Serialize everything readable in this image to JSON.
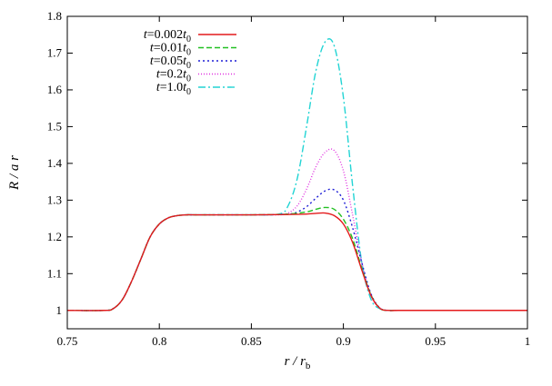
{
  "chart_data": {
    "type": "line",
    "title": "",
    "xlabel": "r / r_b",
    "ylabel": "R / a r",
    "xlim": [
      0.75,
      1.0
    ],
    "ylim": [
      0.95,
      1.8
    ],
    "xticks": [
      0.75,
      0.8,
      0.85,
      0.9,
      0.95,
      1.0
    ],
    "xtick_labels": [
      "0.75",
      "0.8",
      "0.85",
      "0.9",
      "0.95",
      "1"
    ],
    "yticks": [
      1.0,
      1.1,
      1.2,
      1.3,
      1.4,
      1.5,
      1.6,
      1.7,
      1.8
    ],
    "ytick_labels": [
      "1",
      "1.1",
      "1.2",
      "1.3",
      "1.4",
      "1.5",
      "1.6",
      "1.7",
      "1.8"
    ],
    "grid": false,
    "legend_position": "top-left",
    "series": [
      {
        "name": "t=0.002t0",
        "color": "#e41a1c",
        "dash": "solid",
        "x": [
          0.75,
          0.77,
          0.775,
          0.78,
          0.785,
          0.79,
          0.795,
          0.8,
          0.805,
          0.81,
          0.815,
          0.82,
          0.85,
          0.87,
          0.88,
          0.885,
          0.89,
          0.895,
          0.9,
          0.905,
          0.91,
          0.915,
          0.92,
          0.925,
          0.93,
          0.95,
          1.0
        ],
        "y": [
          1.0,
          1.0,
          1.005,
          1.03,
          1.08,
          1.14,
          1.2,
          1.235,
          1.252,
          1.258,
          1.26,
          1.26,
          1.26,
          1.261,
          1.262,
          1.264,
          1.265,
          1.258,
          1.235,
          1.185,
          1.11,
          1.04,
          1.005,
          1.0,
          1.0,
          1.0,
          1.0
        ]
      },
      {
        "name": "t=0.01t0",
        "color": "#22c022",
        "dash": "6,3",
        "x": [
          0.75,
          0.77,
          0.775,
          0.78,
          0.785,
          0.79,
          0.795,
          0.8,
          0.805,
          0.81,
          0.815,
          0.82,
          0.85,
          0.87,
          0.88,
          0.885,
          0.89,
          0.895,
          0.9,
          0.905,
          0.91,
          0.915,
          0.92,
          0.925,
          0.93,
          0.95,
          1.0
        ],
        "y": [
          1.0,
          1.0,
          1.005,
          1.03,
          1.08,
          1.14,
          1.2,
          1.235,
          1.252,
          1.258,
          1.26,
          1.26,
          1.26,
          1.262,
          1.268,
          1.275,
          1.28,
          1.275,
          1.248,
          1.195,
          1.115,
          1.042,
          1.005,
          1.0,
          1.0,
          1.0,
          1.0
        ]
      },
      {
        "name": "t=0.05t0",
        "color": "#1f1fd6",
        "dash": "2,3",
        "x": [
          0.75,
          0.77,
          0.775,
          0.78,
          0.785,
          0.79,
          0.795,
          0.8,
          0.805,
          0.81,
          0.815,
          0.82,
          0.85,
          0.87,
          0.875,
          0.88,
          0.885,
          0.89,
          0.895,
          0.9,
          0.905,
          0.91,
          0.915,
          0.92,
          0.925,
          0.93,
          0.95,
          1.0
        ],
        "y": [
          1.0,
          1.0,
          1.005,
          1.03,
          1.08,
          1.14,
          1.2,
          1.235,
          1.252,
          1.258,
          1.26,
          1.26,
          1.26,
          1.262,
          1.268,
          1.282,
          1.305,
          1.325,
          1.328,
          1.3,
          1.225,
          1.13,
          1.045,
          1.006,
          1.0,
          1.0,
          1.0,
          1.0
        ]
      },
      {
        "name": "t=0.2t0",
        "color": "#e030e0",
        "dash": "1,2",
        "x": [
          0.75,
          0.77,
          0.775,
          0.78,
          0.785,
          0.79,
          0.795,
          0.8,
          0.805,
          0.81,
          0.815,
          0.82,
          0.85,
          0.865,
          0.87,
          0.875,
          0.88,
          0.885,
          0.89,
          0.895,
          0.9,
          0.905,
          0.91,
          0.915,
          0.92,
          0.925,
          0.93,
          0.95,
          1.0
        ],
        "y": [
          1.0,
          1.0,
          1.005,
          1.03,
          1.08,
          1.14,
          1.2,
          1.235,
          1.252,
          1.258,
          1.26,
          1.26,
          1.26,
          1.26,
          1.265,
          1.285,
          1.33,
          1.39,
          1.43,
          1.435,
          1.38,
          1.26,
          1.13,
          1.04,
          1.006,
          1.0,
          1.0,
          1.0,
          1.0
        ]
      },
      {
        "name": "t=1.0t0",
        "color": "#22d4d4",
        "dash": "8,3,2,3",
        "x": [
          0.75,
          0.77,
          0.775,
          0.78,
          0.785,
          0.79,
          0.795,
          0.8,
          0.805,
          0.81,
          0.815,
          0.82,
          0.85,
          0.865,
          0.87,
          0.875,
          0.88,
          0.885,
          0.89,
          0.895,
          0.9,
          0.905,
          0.91,
          0.915,
          0.92,
          0.925,
          0.93,
          0.95,
          1.0
        ],
        "y": [
          1.0,
          1.0,
          1.005,
          1.03,
          1.08,
          1.14,
          1.2,
          1.235,
          1.252,
          1.258,
          1.26,
          1.26,
          1.26,
          1.262,
          1.285,
          1.36,
          1.5,
          1.65,
          1.73,
          1.72,
          1.58,
          1.34,
          1.13,
          1.03,
          1.004,
          1.0,
          1.0,
          1.0,
          1.0
        ]
      }
    ]
  }
}
